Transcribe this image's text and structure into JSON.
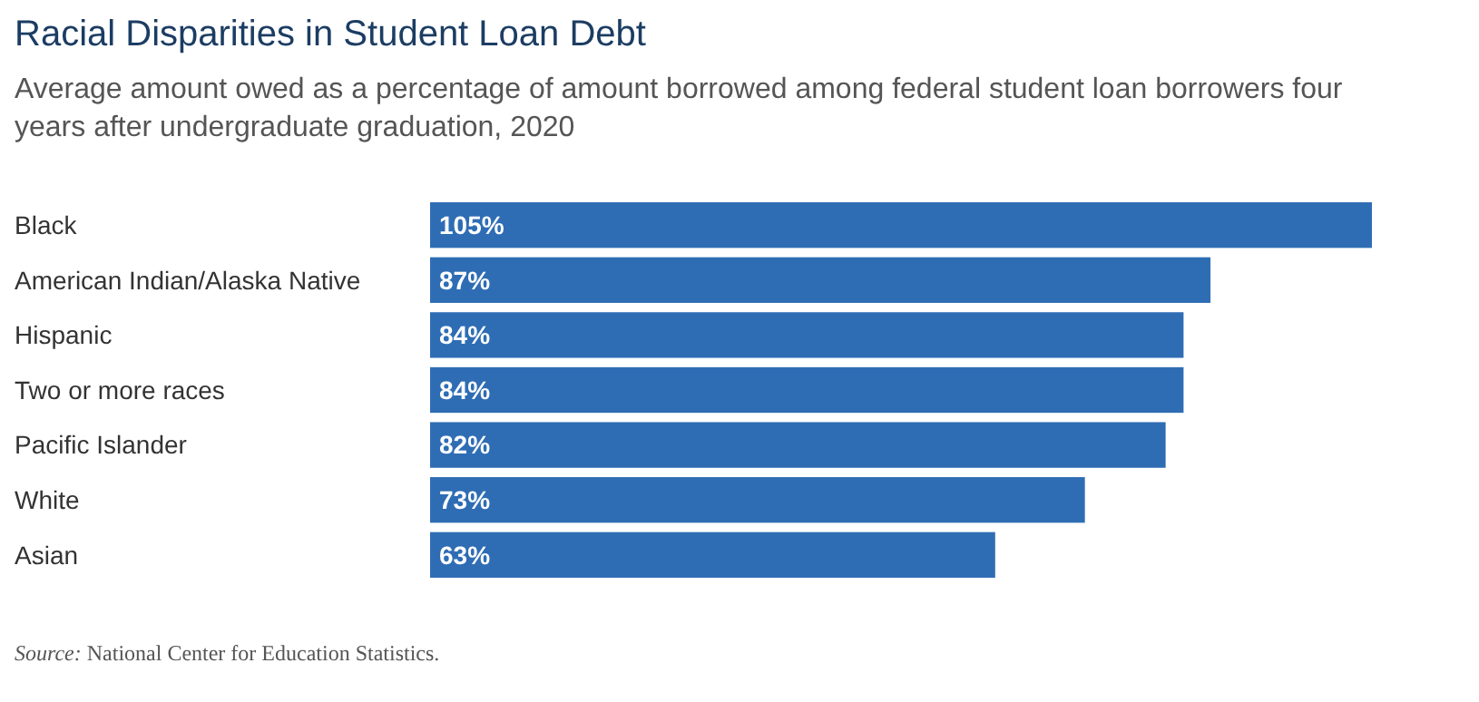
{
  "chart_data": {
    "type": "bar",
    "orientation": "horizontal",
    "title": "Racial Disparities in Student Loan Debt",
    "subtitle": "Average amount owed as a percentage of amount borrowed among federal student loan borrowers four years after undergraduate graduation, 2020",
    "categories": [
      "Black",
      "American Indian/Alaska Native",
      "Hispanic",
      "Two or more races",
      "Pacific Islander",
      "White",
      "Asian"
    ],
    "values": [
      105,
      87,
      84,
      84,
      82,
      73,
      63
    ],
    "value_labels": [
      "105%",
      "87%",
      "84%",
      "84%",
      "82%",
      "73%",
      "63%"
    ],
    "color": "#2e6db4",
    "annotations": [
      "Source: National Center for Education Statistics."
    ]
  }
}
